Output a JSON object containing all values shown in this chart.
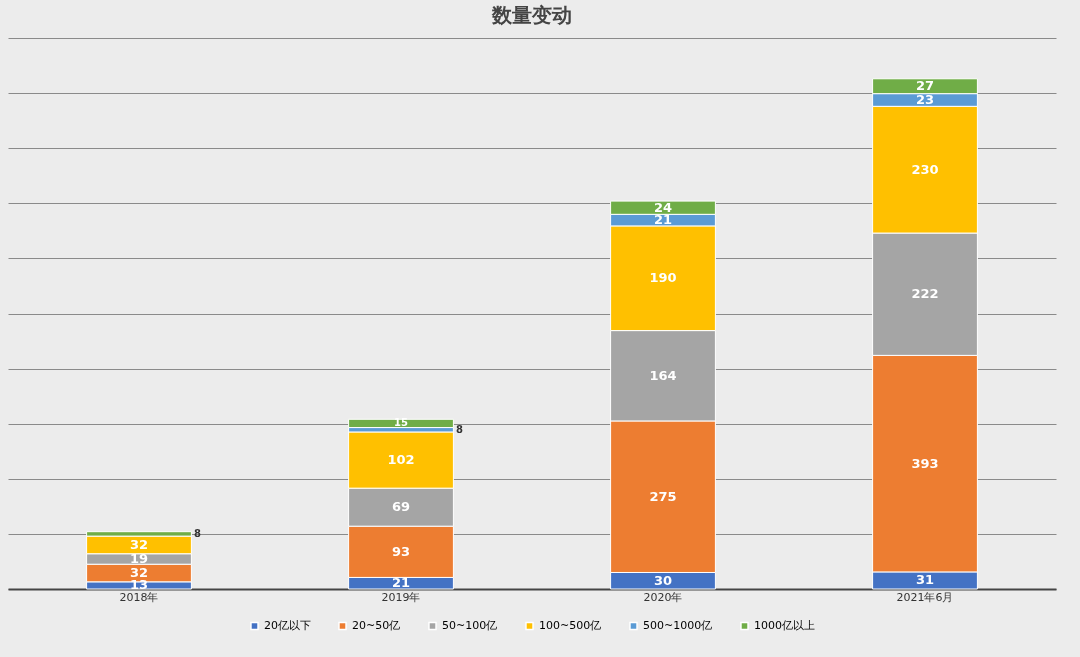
{
  "chart_data": {
    "type": "bar",
    "title": "数量变动",
    "categories": [
      "2018年",
      "2019年",
      "2020年",
      "2021年6月"
    ],
    "stacked": true,
    "data_labels": true,
    "grid": "y",
    "legend": "bottom",
    "tick_labels": "x",
    "ylim": [
      0,
      1000
    ],
    "yticks": [
      {
        "value": 0,
        "label": null
      },
      {
        "value": 100,
        "label": null
      },
      {
        "value": 200,
        "label": null
      },
      {
        "value": 300,
        "label": null
      },
      {
        "value": 400,
        "label": null
      },
      {
        "value": 500,
        "label": null
      },
      {
        "value": 600,
        "label": null
      },
      {
        "value": 700,
        "label": null
      },
      {
        "value": 800,
        "label": null
      },
      {
        "value": 900,
        "label": null
      },
      {
        "value": 1000,
        "label": null
      }
    ],
    "series": [
      {
        "name": "20亿以下",
        "color": "#4472c4",
        "values": [
          13,
          21,
          30,
          31
        ]
      },
      {
        "name": "20~50亿",
        "color": "#ed7d31",
        "values": [
          32,
          93,
          275,
          393
        ]
      },
      {
        "name": "50~100亿",
        "color": "#a5a5a5",
        "values": [
          19,
          69,
          164,
          222
        ]
      },
      {
        "name": "100~500亿",
        "color": "#ffc000",
        "values": [
          32,
          102,
          190,
          230
        ]
      },
      {
        "name": "500~1000亿",
        "color": "#5b9bd5",
        "values": [
          null,
          8,
          21,
          23
        ]
      },
      {
        "name": "1000亿以上",
        "color": "#70ad47",
        "values": [
          8,
          15,
          24,
          27
        ]
      }
    ]
  }
}
